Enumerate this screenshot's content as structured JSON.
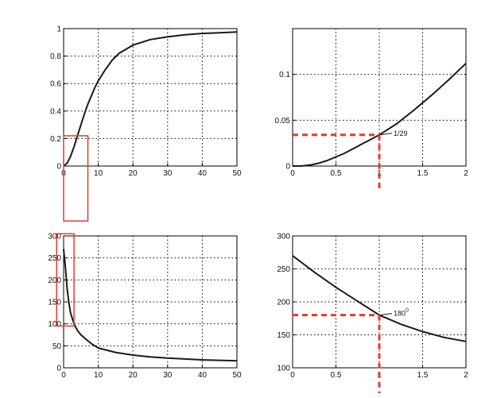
{
  "colors": {
    "curve": "#1a1a1a",
    "guide": "#e8392c",
    "highlight": "#e8392c",
    "grid": "#000000"
  },
  "chart_data": [
    {
      "id": "top-left",
      "type": "line",
      "xlim": [
        0,
        50
      ],
      "ylim": [
        0,
        1
      ],
      "xticks": [
        0,
        10,
        20,
        30,
        40,
        50
      ],
      "yticks": [
        0,
        0.2,
        0.4,
        0.6,
        0.8,
        1
      ],
      "xtick_labels": [
        "0",
        "10",
        "20",
        "30",
        "40",
        "50"
      ],
      "ytick_labels": [
        "0",
        "0.2",
        "0.4",
        "0.6",
        "0.8",
        "1"
      ],
      "grid": true,
      "series": [
        {
          "x": [
            0,
            1,
            2,
            3,
            4,
            5,
            6,
            7,
            8,
            9,
            10,
            12,
            14,
            16,
            18,
            20,
            25,
            30,
            35,
            40,
            45,
            50
          ],
          "y": [
            0,
            0.02,
            0.07,
            0.14,
            0.22,
            0.3,
            0.38,
            0.45,
            0.51,
            0.57,
            0.62,
            0.7,
            0.77,
            0.82,
            0.85,
            0.88,
            0.92,
            0.94,
            0.955,
            0.965,
            0.97,
            0.975
          ]
        }
      ],
      "highlight_box": {
        "x": [
          0,
          7
        ],
        "y": [
          -0.4,
          0.22
        ]
      }
    },
    {
      "id": "top-right",
      "type": "line",
      "xlim": [
        0,
        2
      ],
      "ylim": [
        0,
        0.15
      ],
      "xticks": [
        0,
        0.5,
        1,
        1.5,
        2
      ],
      "yticks": [
        0,
        0.05,
        0.1
      ],
      "xtick_labels": [
        "0",
        "0.5",
        "1",
        "1.5",
        "2"
      ],
      "ytick_labels": [
        "0",
        "0.05",
        "0.1"
      ],
      "grid": true,
      "series": [
        {
          "x": [
            0,
            0.1,
            0.2,
            0.3,
            0.4,
            0.5,
            0.6,
            0.7,
            0.8,
            0.9,
            1.0,
            1.2,
            1.4,
            1.6,
            1.8,
            2.0
          ],
          "y": [
            0,
            0,
            0.001,
            0.003,
            0.006,
            0.01,
            0.014,
            0.019,
            0.024,
            0.029,
            0.034,
            0.046,
            0.061,
            0.077,
            0.094,
            0.112
          ]
        }
      ],
      "guide_point": {
        "x": 1,
        "y": 0.034
      },
      "annotation": {
        "text": "1/29"
      }
    },
    {
      "id": "bottom-left",
      "type": "line",
      "xlim": [
        0,
        50
      ],
      "ylim": [
        0,
        300
      ],
      "xticks": [
        0,
        10,
        20,
        30,
        40,
        50
      ],
      "yticks": [
        0,
        50,
        100,
        150,
        200,
        250,
        300
      ],
      "xtick_labels": [
        "0",
        "10",
        "20",
        "30",
        "40",
        "50"
      ],
      "ytick_labels": [
        "0",
        "50",
        "100",
        "150",
        "200",
        "250",
        "300"
      ],
      "grid": true,
      "series": [
        {
          "x": [
            0,
            0.5,
            1,
            1.5,
            2,
            3,
            4,
            5,
            6,
            8,
            10,
            15,
            20,
            25,
            30,
            35,
            40,
            45,
            50
          ],
          "y": [
            270,
            230,
            180,
            150,
            125,
            100,
            85,
            75,
            68,
            55,
            45,
            35,
            29,
            25,
            22,
            20,
            18,
            17,
            16
          ]
        }
      ],
      "highlight_box": {
        "x": [
          -2,
          3
        ],
        "y": [
          95,
          305
        ]
      }
    },
    {
      "id": "bottom-right",
      "type": "line",
      "xlim": [
        0,
        2
      ],
      "ylim": [
        100,
        300
      ],
      "xticks": [
        0,
        0.5,
        1,
        1.5,
        2
      ],
      "yticks": [
        100,
        150,
        200,
        250,
        300
      ],
      "xtick_labels": [
        "0",
        "0.5",
        "1",
        "1.5",
        "2"
      ],
      "ytick_labels": [
        "100",
        "150",
        "200",
        "250",
        "300"
      ],
      "grid": true,
      "series": [
        {
          "x": [
            0,
            0.25,
            0.5,
            0.75,
            1.0,
            1.25,
            1.5,
            1.75,
            2.0
          ],
          "y": [
            270,
            245,
            222,
            201,
            180,
            166,
            155,
            146,
            140
          ]
        }
      ],
      "guide_point": {
        "x": 1,
        "y": 180
      },
      "annotation": {
        "text": "180",
        "superscript": "0"
      }
    }
  ]
}
